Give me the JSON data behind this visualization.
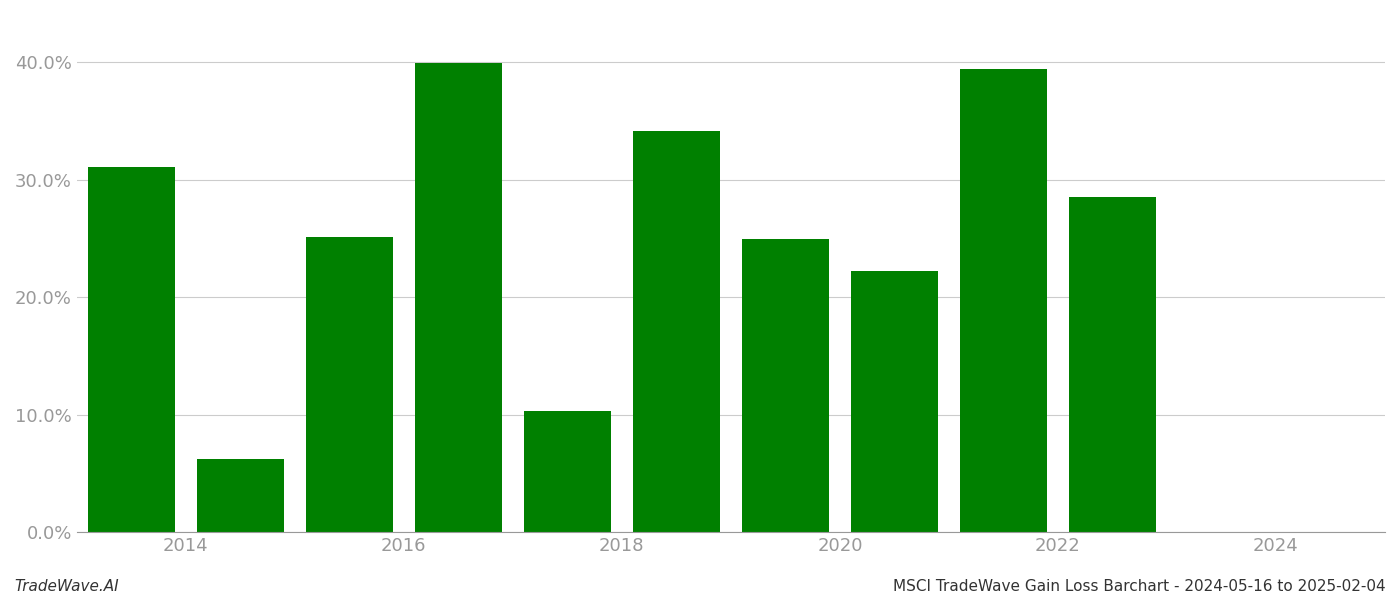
{
  "bar_centers": [
    2013.5,
    2014.5,
    2015.5,
    2016.5,
    2017.5,
    2018.5,
    2019.5,
    2020.5,
    2021.5,
    2022.5
  ],
  "values": [
    0.311,
    0.062,
    0.251,
    0.399,
    0.103,
    0.341,
    0.249,
    0.222,
    0.394,
    0.285
  ],
  "bar_color": "#008000",
  "background_color": "#ffffff",
  "ylim": [
    0.0,
    0.44
  ],
  "yticks": [
    0.0,
    0.1,
    0.2,
    0.3,
    0.4
  ],
  "xticks": [
    2014,
    2016,
    2018,
    2020,
    2022,
    2024
  ],
  "xtick_labels": [
    "2014",
    "2016",
    "2018",
    "2020",
    "2022",
    "2024"
  ],
  "xlim": [
    2013.0,
    2025.0
  ],
  "bar_width": 0.8,
  "grid_color": "#cccccc",
  "tick_color": "#999999",
  "spine_color": "#999999",
  "footer_left": "TradeWave.AI",
  "footer_right": "MSCI TradeWave Gain Loss Barchart - 2024-05-16 to 2025-02-04",
  "footer_fontsize": 11,
  "axis_tick_fontsize": 13
}
